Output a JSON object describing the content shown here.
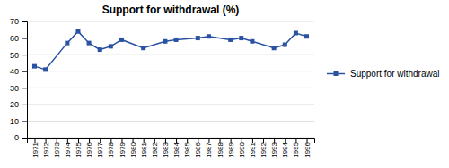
{
  "chart_data": {
    "type": "line",
    "title": "Support for withdrawal (%)",
    "x": [
      1971,
      1972,
      1974,
      1975,
      1976,
      1977,
      1978,
      1979,
      1981,
      1983,
      1984,
      1986,
      1987,
      1989,
      1990,
      1991,
      1993,
      1994,
      1995,
      1996
    ],
    "series": [
      {
        "name": "Support for withdrawal",
        "color": "#2952A3",
        "marker": "square",
        "values": [
          43,
          41,
          57,
          64,
          57,
          53,
          55,
          59,
          54,
          58,
          59,
          60,
          61,
          59,
          60,
          58,
          54,
          56,
          63,
          61
        ]
      }
    ],
    "xlim": [
      1970.3,
      1996.7
    ],
    "xticks": [
      1971,
      1972,
      1973,
      1974,
      1975,
      1976,
      1977,
      1978,
      1979,
      1980,
      1981,
      1982,
      1983,
      1984,
      1985,
      1986,
      1987,
      1988,
      1989,
      1990,
      1991,
      1992,
      1993,
      1994,
      1995,
      1996
    ],
    "ylim": [
      0,
      70
    ],
    "yticks": [
      0,
      10,
      20,
      30,
      40,
      50,
      60,
      70
    ],
    "grid": true,
    "legend": "right"
  }
}
